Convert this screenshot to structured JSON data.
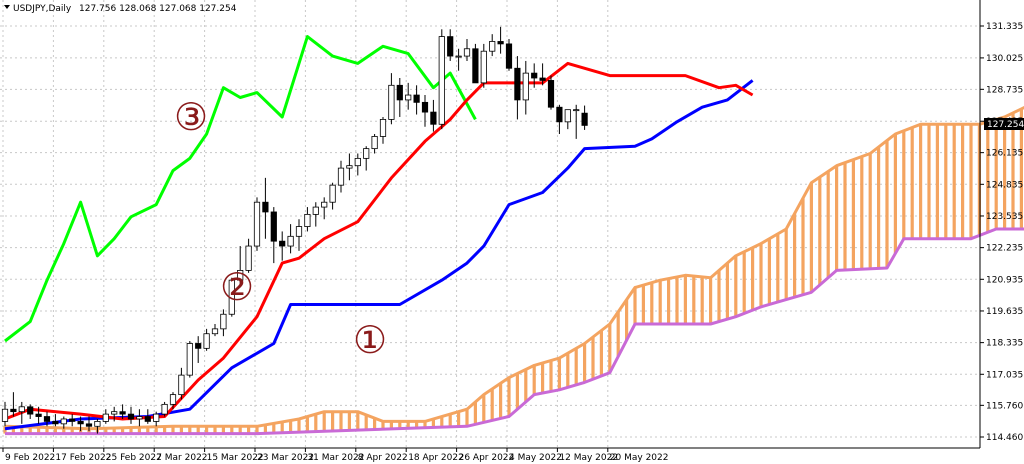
{
  "header": {
    "symbol": "USDJPY,Daily",
    "ohlc": "127.756 128.068 127.068 127.254"
  },
  "price_axis": {
    "ticks": [
      "131.335",
      "130.025",
      "128.735",
      "127.425",
      "126.135",
      "124.835",
      "123.535",
      "122.235",
      "120.935",
      "119.635",
      "118.335",
      "117.035",
      "115.760",
      "114.460"
    ],
    "current_price_label": "127.254"
  },
  "date_axis": {
    "ticks": [
      "9 Feb 2022",
      "17 Feb 2022",
      "25 Feb 2022",
      "7 Mar 2022",
      "15 Mar 2022",
      "23 Mar 2022",
      "31 Mar 2022",
      "8 Apr 2022",
      "18 Apr 2022",
      "26 Apr 2022",
      "4 May 2022",
      "12 May 2022",
      "20 May 2022"
    ]
  },
  "annotations": [
    {
      "label": "①",
      "color": "#8a1a1a"
    },
    {
      "label": "②",
      "color": "#8a1a1a"
    },
    {
      "label": "③",
      "color": "#8a1a1a"
    }
  ],
  "chart_data": {
    "type": "candlestick",
    "indicator": "Ichimoku",
    "ylim": [
      114.2,
      131.9
    ],
    "grid": true,
    "colors": {
      "tenkan": "#ff0000",
      "kijun": "#0000ff",
      "chikou": "#00ff00",
      "senkou_a": "#f4a460",
      "senkou_b": "#c96ad6",
      "bull_candle": "#ffffff",
      "bear_candle": "#000000"
    },
    "candles": [
      [
        115.1,
        115.9,
        114.9,
        115.6
      ],
      [
        115.6,
        116.3,
        115.3,
        115.5
      ],
      [
        115.5,
        115.9,
        115.0,
        115.7
      ],
      [
        115.7,
        115.8,
        115.2,
        115.4
      ],
      [
        115.4,
        115.7,
        115.0,
        115.3
      ],
      [
        115.3,
        115.5,
        114.9,
        115.1
      ],
      [
        115.1,
        115.4,
        114.9,
        115.0
      ],
      [
        115.0,
        115.3,
        114.8,
        115.2
      ],
      [
        115.2,
        115.4,
        114.9,
        115.1
      ],
      [
        115.1,
        115.3,
        114.7,
        115.0
      ],
      [
        115.0,
        115.3,
        114.7,
        114.9
      ],
      [
        114.9,
        115.2,
        114.6,
        115.1
      ],
      [
        115.1,
        115.6,
        115.0,
        115.4
      ],
      [
        115.4,
        115.7,
        115.1,
        115.5
      ],
      [
        115.5,
        115.8,
        115.2,
        115.4
      ],
      [
        115.4,
        115.7,
        115.0,
        115.2
      ],
      [
        115.2,
        115.6,
        114.9,
        115.3
      ],
      [
        115.3,
        115.6,
        115.0,
        115.1
      ],
      [
        115.1,
        115.5,
        114.9,
        115.4
      ],
      [
        115.4,
        115.9,
        115.3,
        115.8
      ],
      [
        115.8,
        116.3,
        115.6,
        116.2
      ],
      [
        116.2,
        117.3,
        116.0,
        117.0
      ],
      [
        117.0,
        118.4,
        116.9,
        118.3
      ],
      [
        118.3,
        118.6,
        117.5,
        118.1
      ],
      [
        118.1,
        118.9,
        118.0,
        118.7
      ],
      [
        118.7,
        119.1,
        118.6,
        118.9
      ],
      [
        118.9,
        119.7,
        118.6,
        119.5
      ],
      [
        119.5,
        121.0,
        119.4,
        120.9
      ],
      [
        120.9,
        122.3,
        120.6,
        121.3
      ],
      [
        121.3,
        122.6,
        121.2,
        122.3
      ],
      [
        122.3,
        124.3,
        122.1,
        124.1
      ],
      [
        124.1,
        125.1,
        122.6,
        123.7
      ],
      [
        123.7,
        123.9,
        121.6,
        122.5
      ],
      [
        122.5,
        122.9,
        121.7,
        122.3
      ],
      [
        122.3,
        123.2,
        122.0,
        122.7
      ],
      [
        122.7,
        123.4,
        122.1,
        123.1
      ],
      [
        123.1,
        123.9,
        122.9,
        123.6
      ],
      [
        123.6,
        124.1,
        123.1,
        123.9
      ],
      [
        123.9,
        124.3,
        123.4,
        124.1
      ],
      [
        124.1,
        124.9,
        123.8,
        124.8
      ],
      [
        124.8,
        125.8,
        124.5,
        125.5
      ],
      [
        125.5,
        126.1,
        125.0,
        125.6
      ],
      [
        125.6,
        126.1,
        125.2,
        125.9
      ],
      [
        125.9,
        126.4,
        125.4,
        126.3
      ],
      [
        126.3,
        126.9,
        126.1,
        126.8
      ],
      [
        126.8,
        127.6,
        126.5,
        127.5
      ],
      [
        127.5,
        129.4,
        127.3,
        128.9
      ],
      [
        128.9,
        129.2,
        127.6,
        128.3
      ],
      [
        128.3,
        129.0,
        127.9,
        128.5
      ],
      [
        128.5,
        128.9,
        127.7,
        128.2
      ],
      [
        128.2,
        128.5,
        127.2,
        127.8
      ],
      [
        127.8,
        128.3,
        127.0,
        127.3
      ],
      [
        127.3,
        131.2,
        127.1,
        130.9
      ],
      [
        130.9,
        131.2,
        129.9,
        130.1
      ],
      [
        130.1,
        130.4,
        129.5,
        130.1
      ],
      [
        130.1,
        130.8,
        129.9,
        130.4
      ],
      [
        130.4,
        130.6,
        129.0,
        129.0
      ],
      [
        129.0,
        130.6,
        128.8,
        130.3
      ],
      [
        130.3,
        131.0,
        130.1,
        130.7
      ],
      [
        130.7,
        131.3,
        130.2,
        130.6
      ],
      [
        130.6,
        130.8,
        129.5,
        129.6
      ],
      [
        129.6,
        130.1,
        127.5,
        128.3
      ],
      [
        128.3,
        129.9,
        127.7,
        129.4
      ],
      [
        129.4,
        129.8,
        128.8,
        129.2
      ],
      [
        129.2,
        129.8,
        128.9,
        129.1
      ],
      [
        129.1,
        129.3,
        127.9,
        128.0
      ],
      [
        128.0,
        128.1,
        126.9,
        127.4
      ],
      [
        127.4,
        127.9,
        127.1,
        127.9
      ],
      [
        127.9,
        128.1,
        126.7,
        127.9
      ],
      [
        127.756,
        128.068,
        127.068,
        127.254
      ]
    ],
    "tenkan": [
      [
        0,
        115.2
      ],
      [
        3,
        115.6
      ],
      [
        9,
        115.4
      ],
      [
        14,
        115.2
      ],
      [
        19,
        115.3
      ],
      [
        23,
        116.8
      ],
      [
        26,
        117.7
      ],
      [
        30,
        119.4
      ],
      [
        33,
        121.6
      ],
      [
        35,
        121.8
      ],
      [
        38,
        122.6
      ],
      [
        42,
        123.3
      ],
      [
        46,
        125.1
      ],
      [
        50,
        126.6
      ],
      [
        53,
        127.5
      ],
      [
        55,
        128.3
      ],
      [
        57,
        129.0
      ],
      [
        64,
        129.0
      ],
      [
        67,
        129.8
      ],
      [
        72,
        129.3
      ],
      [
        81,
        129.3
      ],
      [
        85,
        128.8
      ],
      [
        87,
        128.9
      ],
      [
        89,
        128.5
      ]
    ],
    "kijun": [
      [
        0,
        114.8
      ],
      [
        9,
        115.2
      ],
      [
        17,
        115.3
      ],
      [
        22,
        115.6
      ],
      [
        27,
        117.3
      ],
      [
        32,
        118.3
      ],
      [
        34,
        119.9
      ],
      [
        40,
        119.9
      ],
      [
        47,
        119.9
      ],
      [
        52,
        120.9
      ],
      [
        55,
        121.6
      ],
      [
        57,
        122.3
      ],
      [
        60,
        124.0
      ],
      [
        64,
        124.5
      ],
      [
        67,
        125.5
      ],
      [
        69,
        126.3
      ],
      [
        75,
        126.4
      ],
      [
        77,
        126.7
      ],
      [
        80,
        127.4
      ],
      [
        83,
        128.0
      ],
      [
        86,
        128.3
      ],
      [
        89,
        129.1
      ]
    ],
    "chikou": [
      [
        0,
        118.4
      ],
      [
        3,
        119.2
      ],
      [
        5,
        120.9
      ],
      [
        7,
        122.4
      ],
      [
        9,
        124.1
      ],
      [
        11,
        121.9
      ],
      [
        13,
        122.6
      ],
      [
        15,
        123.5
      ],
      [
        18,
        124.0
      ],
      [
        20,
        125.4
      ],
      [
        22,
        125.9
      ],
      [
        24,
        126.9
      ],
      [
        26,
        128.8
      ],
      [
        28,
        128.4
      ],
      [
        30,
        128.6
      ],
      [
        33,
        127.6
      ],
      [
        36,
        130.9
      ],
      [
        39,
        130.1
      ],
      [
        42,
        129.8
      ],
      [
        45,
        130.5
      ],
      [
        48,
        130.2
      ],
      [
        51,
        128.8
      ],
      [
        53,
        129.4
      ],
      [
        56,
        127.5
      ]
    ],
    "senkou_a": [
      [
        0,
        114.9
      ],
      [
        10,
        114.8
      ],
      [
        20,
        114.9
      ],
      [
        30,
        114.9
      ],
      [
        35,
        115.2
      ],
      [
        38,
        115.5
      ],
      [
        42,
        115.5
      ],
      [
        45,
        115.1
      ],
      [
        50,
        115.1
      ],
      [
        55,
        115.6
      ],
      [
        57,
        116.2
      ],
      [
        60,
        116.9
      ],
      [
        63,
        117.4
      ],
      [
        66,
        117.7
      ],
      [
        69,
        118.3
      ],
      [
        72,
        119.1
      ],
      [
        75,
        120.6
      ],
      [
        78,
        120.9
      ],
      [
        81,
        121.1
      ],
      [
        84,
        121.0
      ],
      [
        87,
        121.9
      ],
      [
        90,
        122.4
      ],
      [
        93,
        123.0
      ],
      [
        96,
        124.9
      ],
      [
        99,
        125.6
      ],
      [
        103,
        126.1
      ],
      [
        106,
        126.9
      ],
      [
        109,
        127.3
      ],
      [
        113,
        127.3
      ],
      [
        116,
        127.3
      ],
      [
        119,
        127.6
      ],
      [
        122,
        128.1
      ],
      [
        125,
        128.4
      ],
      [
        128,
        128.3
      ],
      [
        132,
        128.5
      ]
    ],
    "senkou_b": [
      [
        0,
        114.6
      ],
      [
        30,
        114.6
      ],
      [
        55,
        114.9
      ],
      [
        60,
        115.3
      ],
      [
        63,
        116.2
      ],
      [
        66,
        116.4
      ],
      [
        69,
        116.7
      ],
      [
        72,
        117.1
      ],
      [
        75,
        119.1
      ],
      [
        80,
        119.1
      ],
      [
        84,
        119.1
      ],
      [
        87,
        119.4
      ],
      [
        90,
        119.8
      ],
      [
        93,
        120.1
      ],
      [
        96,
        120.4
      ],
      [
        99,
        121.3
      ],
      [
        105,
        121.4
      ],
      [
        107,
        122.6
      ],
      [
        115,
        122.6
      ],
      [
        118,
        123.0
      ],
      [
        132,
        123.0
      ]
    ]
  }
}
